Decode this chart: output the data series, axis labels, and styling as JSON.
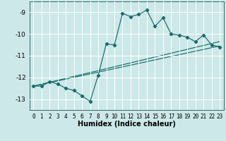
{
  "xlabel": "Humidex (Indice chaleur)",
  "background_color": "#cce8e8",
  "grid_color": "#ffffff",
  "line_color": "#1a6b6b",
  "xlim": [
    -0.5,
    23.5
  ],
  "ylim": [
    -13.5,
    -8.5
  ],
  "yticks": [
    -13,
    -12,
    -11,
    -10,
    -9
  ],
  "xticks": [
    0,
    1,
    2,
    3,
    4,
    5,
    6,
    7,
    8,
    9,
    10,
    11,
    12,
    13,
    14,
    15,
    16,
    17,
    18,
    19,
    20,
    21,
    22,
    23
  ],
  "series": [
    {
      "x": [
        0,
        1,
        2,
        3,
        4,
        5,
        6,
        7,
        8,
        9,
        10,
        11,
        12,
        13,
        14,
        15,
        16,
        17,
        18,
        19,
        20,
        21,
        22,
        23
      ],
      "y": [
        -12.4,
        -12.4,
        -12.2,
        -12.3,
        -12.5,
        -12.6,
        -12.85,
        -13.1,
        -11.9,
        -10.45,
        -10.5,
        -9.05,
        -9.2,
        -9.1,
        -8.9,
        -9.65,
        -9.25,
        -10.0,
        -10.05,
        -10.15,
        -10.35,
        -10.05,
        -10.5,
        -10.6
      ],
      "has_markers": true
    },
    {
      "x": [
        0,
        23
      ],
      "y": [
        -12.4,
        -10.55
      ],
      "has_markers": false
    },
    {
      "x": [
        0,
        23
      ],
      "y": [
        -12.4,
        -10.35
      ],
      "has_markers": false
    }
  ]
}
